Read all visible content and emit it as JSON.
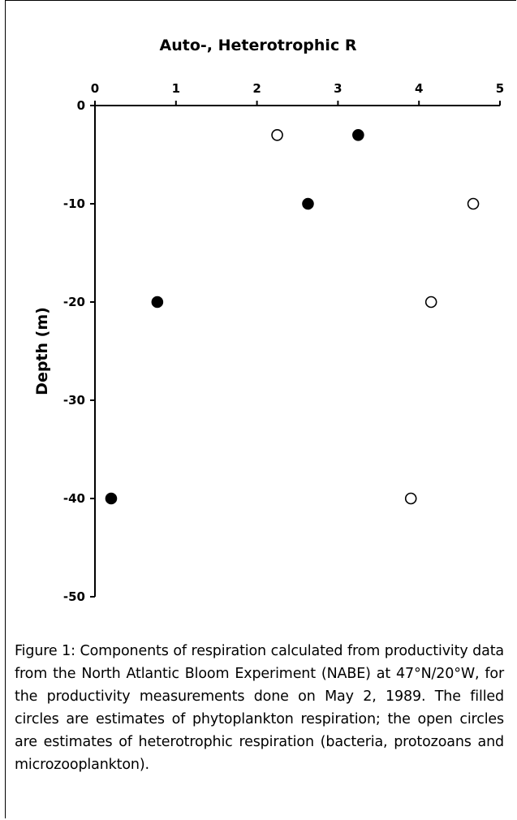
{
  "chart_data": {
    "type": "scatter",
    "title": "Auto-, Heterotrophic R",
    "xlabel": "",
    "ylabel": "Depth (m)",
    "xlim": [
      0,
      5
    ],
    "ylim": [
      -50,
      0
    ],
    "x_ticks": [
      0,
      1,
      2,
      3,
      4,
      5
    ],
    "y_ticks": [
      0,
      -10,
      -20,
      -30,
      -40,
      -50
    ],
    "x_axis_position": "top",
    "grid": false,
    "legend": "none",
    "series": [
      {
        "marker": "filled-circle",
        "color": "#000000",
        "points": [
          {
            "x": 3.25,
            "y": -3
          },
          {
            "x": 2.63,
            "y": -10
          },
          {
            "x": 0.77,
            "y": -20
          },
          {
            "x": 0.2,
            "y": -40
          }
        ]
      },
      {
        "marker": "open-circle",
        "color": "#000000",
        "points": [
          {
            "x": 2.25,
            "y": -3
          },
          {
            "x": 4.67,
            "y": -10
          },
          {
            "x": 4.15,
            "y": -20
          },
          {
            "x": 3.9,
            "y": -40
          }
        ]
      }
    ]
  },
  "caption": "Figure 1: Components of respiration calculated from productivity data from the North Atlantic Bloom Experiment (NABE) at 47°N/20°W, for the productivity measurements done on May 2, 1989. The filled circles are estimates of phytoplankton respiration; the open circles are estimates of heterotrophic respiration (bacteria, protozoans and microzooplankton)."
}
